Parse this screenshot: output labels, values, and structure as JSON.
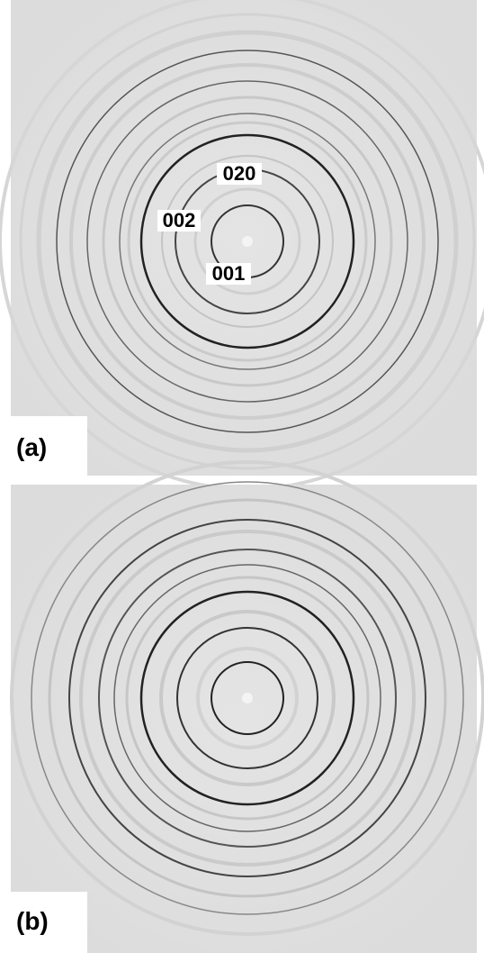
{
  "panels": [
    {
      "label": "(a)",
      "annotations": [
        "020",
        "002",
        "001"
      ]
    },
    {
      "label": "(b)"
    }
  ]
}
